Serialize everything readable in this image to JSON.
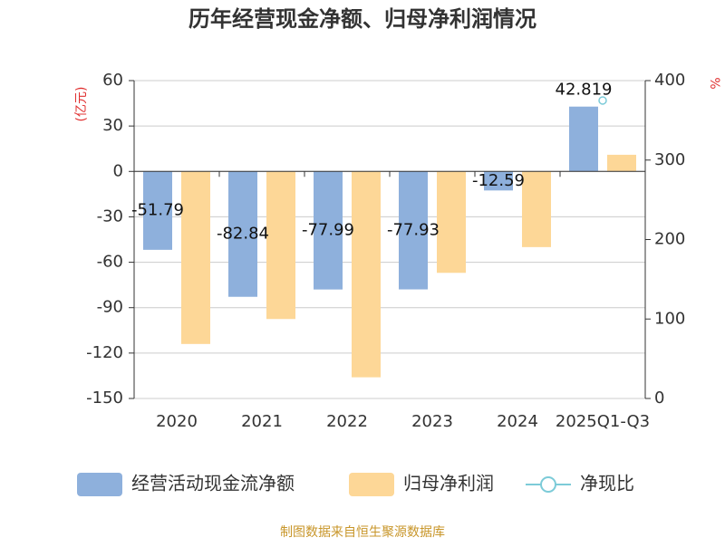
{
  "chart_data": {
    "type": "bar",
    "title": "历年经营现金净额、归母净利润情况",
    "y_label": "(亿元)",
    "y2_label": "%",
    "source": "制图数据来自恒生聚源数据库",
    "categories": [
      "2020",
      "2021",
      "2022",
      "2023",
      "2024",
      "2025Q1-Q3"
    ],
    "series": [
      {
        "name": "经营活动现金流净额",
        "type": "bar",
        "color": "#8eb0dc",
        "values": [
          -51.79,
          -82.84,
          -77.99,
          -77.93,
          -12.59,
          42.819
        ]
      },
      {
        "name": "归母净利润",
        "type": "bar",
        "color": "#fdd797",
        "values": [
          -114,
          -97.5,
          -136,
          -67,
          -50,
          11
        ]
      },
      {
        "name": "净现比",
        "type": "line",
        "axis": "y2",
        "color": "#7ccbd8",
        "values": [
          null,
          null,
          null,
          null,
          null,
          375
        ]
      }
    ],
    "ylim": [
      -150,
      60
    ],
    "yticks": [
      -150,
      -120,
      -90,
      -60,
      -30,
      0,
      30,
      60
    ],
    "y2lim": [
      0,
      400
    ],
    "y2ticks": [
      0,
      100,
      200,
      300,
      400
    ],
    "grid": true,
    "legend": "bottom"
  }
}
